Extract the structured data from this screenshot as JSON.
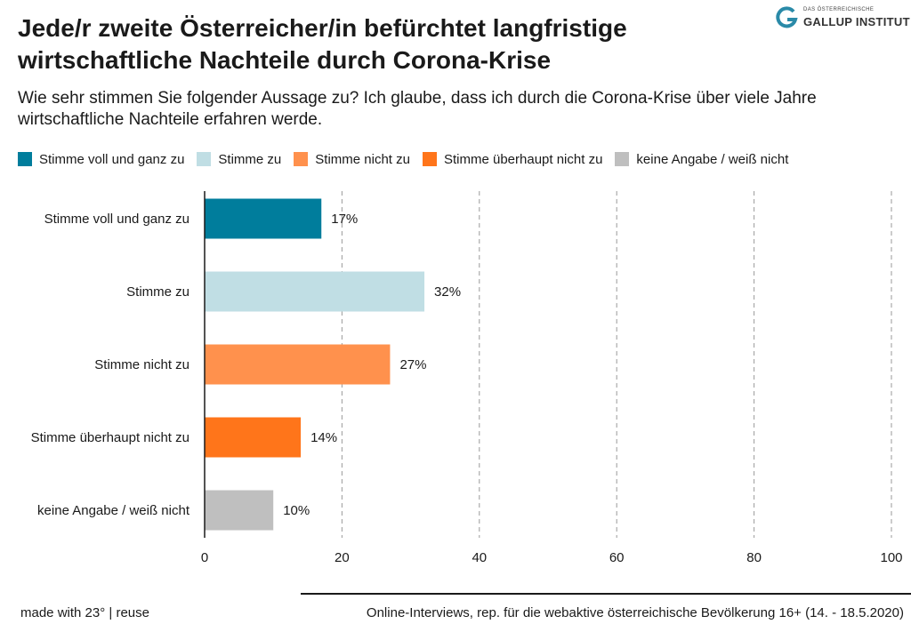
{
  "title": "Jede/r zweite Österreicher/in befürchtet langfristige wirtschaftliche Nachteile durch Corona-Krise",
  "subtitle": "Wie sehr stimmen Sie folgender Aussage zu? Ich glaube, dass ich durch die Corona-Krise über viele Jahre wirtschaftliche Nachteile erfahren werde.",
  "logo": {
    "small": "DAS ÖSTERREICHISCHE",
    "big": "GALLUP INSTITUT",
    "color": "#2a8aa8"
  },
  "legend": [
    {
      "label": "Stimme voll und ganz zu",
      "color": "#007d9c"
    },
    {
      "label": "Stimme zu",
      "color": "#c0dee4"
    },
    {
      "label": "Stimme nicht zu",
      "color": "#ff914d"
    },
    {
      "label": "Stimme überhaupt nicht zu",
      "color": "#ff751a"
    },
    {
      "label": "keine Angabe / weiß nicht",
      "color": "#bfbfbf"
    }
  ],
  "chart_data": {
    "type": "bar",
    "orientation": "horizontal",
    "categories": [
      "Stimme voll und ganz zu",
      "Stimme zu",
      "Stimme nicht zu",
      "Stimme überhaupt nicht zu",
      "keine Angabe / weiß nicht"
    ],
    "values": [
      17,
      32,
      27,
      14,
      10
    ],
    "value_labels": [
      "17%",
      "32%",
      "27%",
      "14%",
      "10%"
    ],
    "colors": [
      "#007d9c",
      "#c0dee4",
      "#ff914d",
      "#ff751a",
      "#bfbfbf"
    ],
    "xlim": [
      0,
      100
    ],
    "xticks": [
      0,
      20,
      40,
      60,
      80,
      100
    ],
    "grid": "vertical dashed",
    "legend_position": "top"
  },
  "footer": {
    "left": "made with 23° | reuse",
    "right": "Online-Interviews, rep. für die webaktive österreichische Bevölkerung 16+ (14. - 18.5.2020)"
  }
}
